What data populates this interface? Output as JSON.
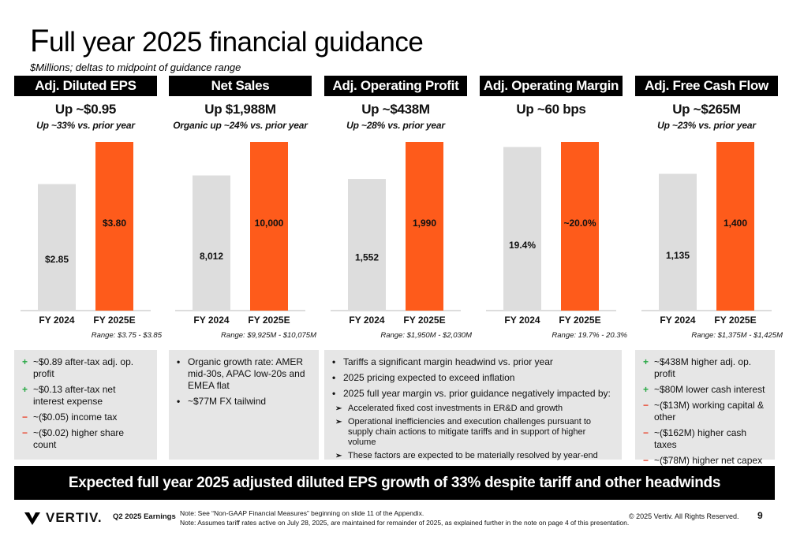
{
  "title": "Full year 2025 financial guidance",
  "subtitle": "$Millions; deltas to midpoint of guidance range",
  "colors": {
    "prior": "#dddddd",
    "guidance": "#fe5b1b",
    "header": "#000000",
    "notebox": "#e6e6e6"
  },
  "chart_data": [
    {
      "type": "bar",
      "title": "Adj. Diluted EPS",
      "headline": "Up ~$0.95",
      "subline": "Up ~33% vs. prior year",
      "categories": [
        "FY 2024",
        "FY 2025E"
      ],
      "values": [
        2.85,
        3.8
      ],
      "labels": [
        "$2.85",
        "$3.80"
      ],
      "range": "Range: $3.75 -  $3.85"
    },
    {
      "type": "bar",
      "title": "Net Sales",
      "headline": "Up $1,988M",
      "subline": "Organic up ~24% vs. prior year",
      "categories": [
        "FY 2024",
        "FY 2025E"
      ],
      "values": [
        8012,
        10000
      ],
      "labels": [
        "8,012",
        "10,000"
      ],
      "range": "Range: $9,925M - $10,075M"
    },
    {
      "type": "bar",
      "title": "Adj. Operating Profit",
      "headline": "Up ~$438M",
      "subline": "Up ~28% vs. prior year",
      "categories": [
        "FY 2024",
        "FY 2025E"
      ],
      "values": [
        1552,
        1990
      ],
      "labels": [
        "1,552",
        "1,990"
      ],
      "range": "Range: $1,950M - $2,030M"
    },
    {
      "type": "bar",
      "title": "Adj. Operating Margin",
      "headline": "Up ~60 bps",
      "subline": "",
      "categories": [
        "FY 2024",
        "FY 2025E"
      ],
      "values": [
        19.4,
        20.0
      ],
      "labels": [
        "19.4%",
        "~20.0%"
      ],
      "range": "Range: 19.7% - 20.3%"
    },
    {
      "type": "bar",
      "title": "Adj. Free Cash Flow",
      "headline": "Up ~$265M",
      "subline": "Up ~23% vs. prior year",
      "categories": [
        "FY 2024",
        "FY 2025E"
      ],
      "values": [
        1135,
        1400
      ],
      "labels": [
        "1,135",
        "1,400"
      ],
      "range": "Range: $1,375M - $1,425M"
    }
  ],
  "notes": {
    "eps": [
      {
        "sign": "+",
        "text": "~$0.89 after-tax adj. op. profit"
      },
      {
        "sign": "+",
        "text": "~$0.13 after-tax net interest expense"
      },
      {
        "sign": "−",
        "text": "~($0.05) income tax"
      },
      {
        "sign": "−",
        "text": "~($0.02) higher share count"
      }
    ],
    "sales": [
      {
        "sign": "•",
        "text": "Organic growth rate: AMER mid-30s, APAC low-20s and EMEA flat"
      },
      {
        "sign": "•",
        "text": "~$77M FX tailwind"
      }
    ],
    "margin": [
      {
        "sign": "•",
        "text": "Tariffs a significant margin headwind vs. prior year"
      },
      {
        "sign": "•",
        "text": "2025 pricing expected to exceed inflation"
      },
      {
        "sign": "•",
        "text": "2025 full year margin vs. prior guidance negatively impacted by:"
      }
    ],
    "margin_sub": [
      {
        "sign": "➢",
        "text": "Accelerated fixed cost investments in ER&D and growth"
      },
      {
        "sign": "➢",
        "text": "Operational inefficiencies and execution challenges pursuant to supply chain actions to mitigate tariffs and in support of higher volume"
      },
      {
        "sign": "➢",
        "text": "These factors are expected to be materially resolved by year-end"
      }
    ],
    "fcf": [
      {
        "sign": "+",
        "text": "~$438M higher adj. op. profit"
      },
      {
        "sign": "+",
        "text": "~$80M lower cash interest"
      },
      {
        "sign": "−",
        "text": "~($13M) working capital & other"
      },
      {
        "sign": "−",
        "text": "~($162M) higher cash taxes"
      },
      {
        "sign": "−",
        "text": "~($78M) higher net capex"
      }
    ]
  },
  "banner": "Expected full year 2025 adjusted diluted EPS growth of 33% despite tariff and other headwinds",
  "footer": {
    "logo": "VERTIV.",
    "earnings": "Q2 2025 Earnings",
    "note1": "Note: See “Non-GAAP Financial Measures” beginning on slide 11 of the Appendix.",
    "note2": "Note: Assumes tariff rates active on July 28, 2025, are maintained for remainder of 2025, as explained further in the note on page 4 of this presentation.",
    "copyright": "© 2025 Vertiv. All Rights Reserved.",
    "page": "9"
  }
}
